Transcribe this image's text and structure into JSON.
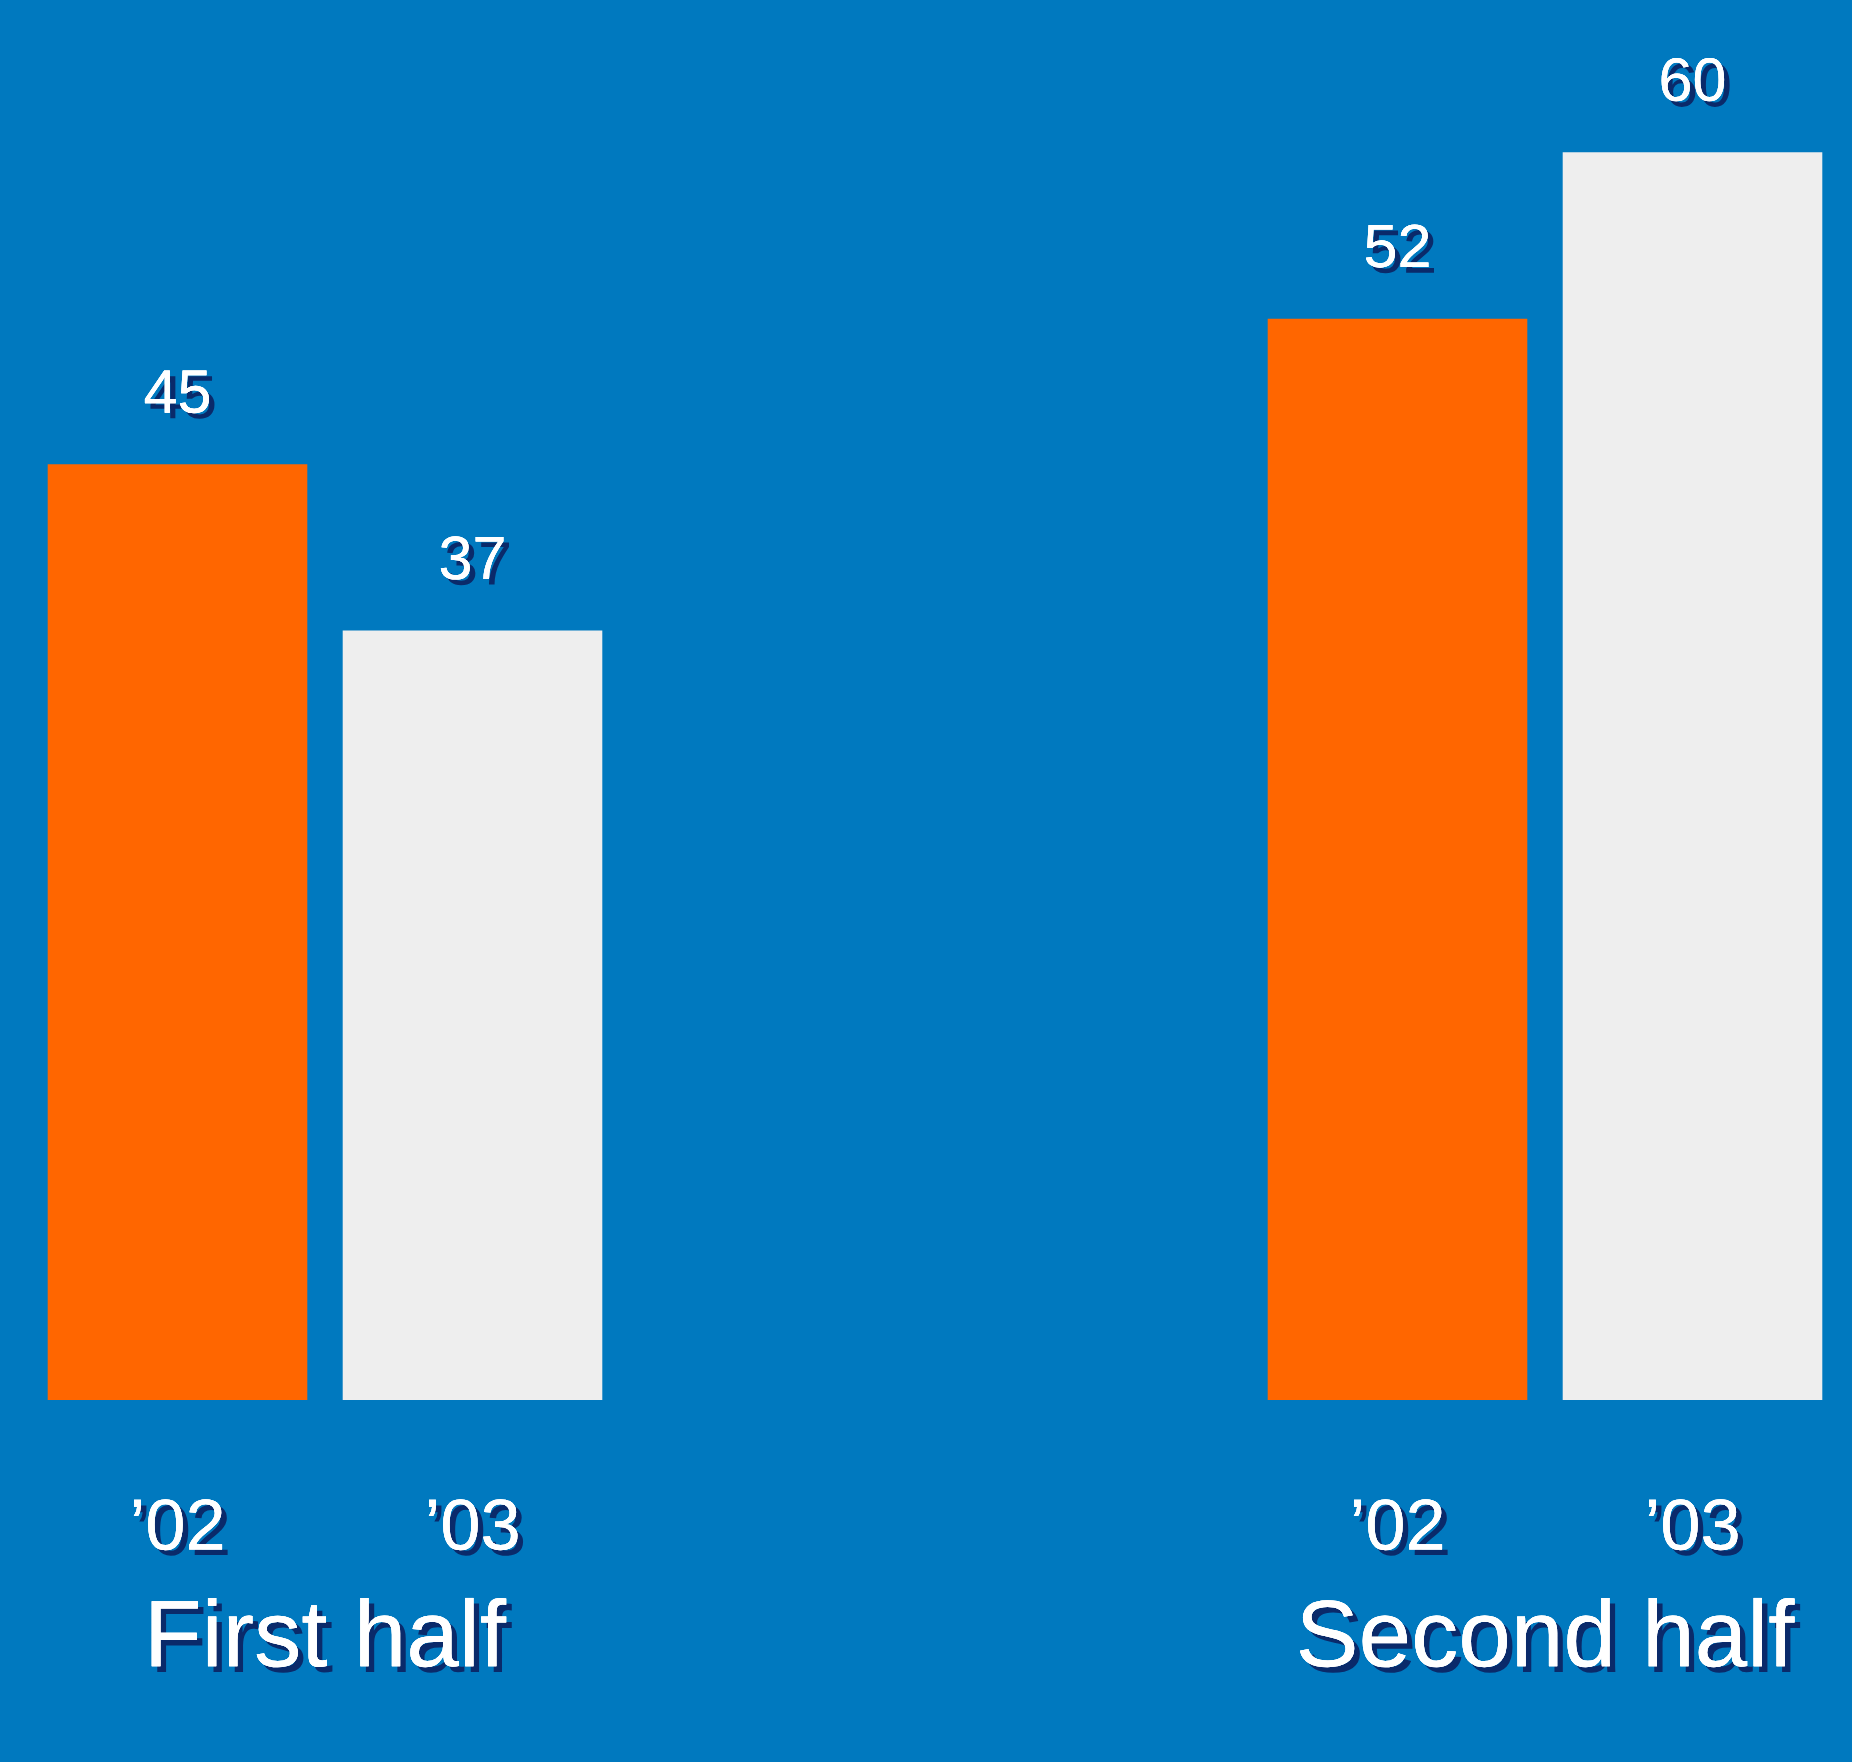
{
  "chart_data": [
    {
      "type": "bar",
      "xlabel": "First half",
      "categories": [
        "’02",
        "’03"
      ],
      "values": [
        45,
        37
      ],
      "colors": [
        "#ff6600",
        "#eeeeee"
      ],
      "data_labels": true
    },
    {
      "type": "bar",
      "xlabel": "Second half",
      "categories": [
        "’02",
        "’03"
      ],
      "values": [
        52,
        60
      ],
      "colors": [
        "#ff6600",
        "#eeeeee"
      ],
      "data_labels": true
    }
  ]
}
